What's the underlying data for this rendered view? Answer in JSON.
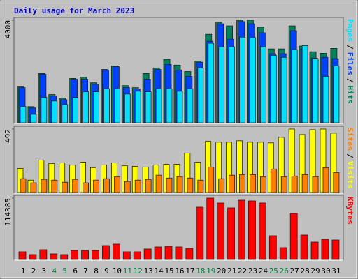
{
  "chart_data": [
    {
      "type": "bar",
      "title": "Daily usage for March 2023",
      "ylim": [
        0,
        4000
      ],
      "yticks": [
        4000
      ],
      "legend_separator": "/",
      "series": [
        {
          "name": "Hits",
          "color": "#00805c",
          "values": [
            1400,
            630,
            1920,
            1100,
            960,
            1730,
            1780,
            1560,
            2080,
            2220,
            1450,
            1370,
            1920,
            2140,
            2470,
            2250,
            2000,
            2410,
            3450,
            3920,
            3780,
            4000,
            4000,
            3730,
            2880,
            2880,
            3780,
            2990,
            2770,
            2710,
            2900
          ]
        },
        {
          "name": "Files",
          "color": "#0040ff",
          "values": [
            1370,
            580,
            1890,
            1040,
            900,
            1700,
            1700,
            1510,
            2060,
            2190,
            1370,
            1320,
            1700,
            2080,
            2270,
            2060,
            1810,
            2360,
            3180,
            3860,
            3260,
            3950,
            3860,
            3510,
            2690,
            2690,
            3590,
            2880,
            2520,
            2550,
            2500
          ]
        },
        {
          "name": "Pages",
          "color": "#00e0ff",
          "values": [
            630,
            330,
            990,
            850,
            710,
            990,
            1210,
            1210,
            1320,
            1320,
            1120,
            1230,
            1210,
            1320,
            1320,
            1230,
            1320,
            2140,
            3100,
            2960,
            2960,
            3340,
            3320,
            2960,
            2630,
            2550,
            2850,
            3010,
            2490,
            1810,
            2220
          ]
        }
      ]
    },
    {
      "type": "bar",
      "ylim": [
        0,
        492
      ],
      "yticks": [
        492
      ],
      "legend_separator": "/",
      "series": [
        {
          "name": "Visits",
          "color": "#ffff00",
          "values": [
            187,
            96,
            251,
            225,
            230,
            214,
            235,
            193,
            214,
            230,
            209,
            203,
            198,
            214,
            219,
            219,
            305,
            235,
            396,
            390,
            390,
            401,
            390,
            390,
            385,
            428,
            492,
            449,
            487,
            492,
            460
          ]
        },
        {
          "name": "Sites",
          "color": "#ff8000",
          "values": [
            107,
            75,
            102,
            96,
            80,
            102,
            75,
            96,
            107,
            123,
            86,
            96,
            102,
            134,
            112,
            123,
            112,
            96,
            198,
            107,
            134,
            139,
            139,
            123,
            182,
            123,
            128,
            139,
            123,
            193,
            155
          ]
        }
      ]
    },
    {
      "type": "bar",
      "ylim": [
        0,
        114385
      ],
      "yticks": [
        114385
      ],
      "categories": [
        "1",
        "2",
        "3",
        "4",
        "5",
        "6",
        "7",
        "8",
        "9",
        "10",
        "11",
        "12",
        "13",
        "14",
        "15",
        "16",
        "17",
        "18",
        "19",
        "20",
        "21",
        "22",
        "23",
        "24",
        "25",
        "26",
        "27",
        "28",
        "29",
        "30",
        "31"
      ],
      "category_colors": [
        "#000000",
        "#000000",
        "#000000",
        "#008040",
        "#008040",
        "#000000",
        "#000000",
        "#000000",
        "#000000",
        "#000000",
        "#008040",
        "#008040",
        "#000000",
        "#000000",
        "#000000",
        "#000000",
        "#000000",
        "#008040",
        "#008040",
        "#000000",
        "#000000",
        "#000000",
        "#000000",
        "#000000",
        "#008040",
        "#008040",
        "#000000",
        "#000000",
        "#000000",
        "#000000",
        "#000000"
      ],
      "series": [
        {
          "name": "KBytes",
          "color": "#ff0000",
          "values": [
            14300,
            9100,
            18200,
            10400,
            9100,
            16900,
            16900,
            16900,
            26000,
            28600,
            14300,
            14300,
            19500,
            23400,
            24700,
            23400,
            20800,
            97500,
            114385,
            105300,
            96200,
            110500,
            109200,
            105300,
            44200,
            22100,
            85800,
            45500,
            32500,
            37700,
            36400
          ]
        }
      ]
    }
  ]
}
